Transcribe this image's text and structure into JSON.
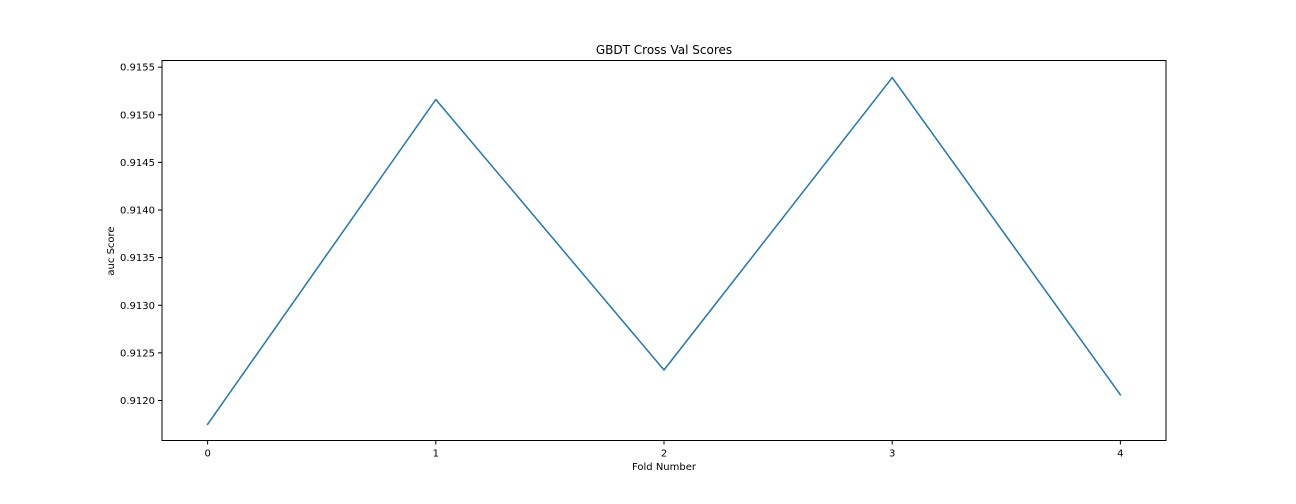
{
  "chart_data": {
    "type": "line",
    "title": "GBDT Cross Val Scores",
    "xlabel": "Fold Number",
    "ylabel": "auc Score",
    "x": [
      0,
      1,
      2,
      3,
      4
    ],
    "y": [
      0.91175,
      0.91516,
      0.91232,
      0.91539,
      0.91206
    ],
    "xlim": [
      -0.2,
      4.2
    ],
    "ylim": [
      0.91158,
      0.91557
    ],
    "xticks": [
      0,
      1,
      2,
      3,
      4
    ],
    "yticks": [
      "0.9120",
      "0.9125",
      "0.9130",
      "0.9135",
      "0.9140",
      "0.9145",
      "0.9150",
      "0.9155"
    ],
    "ytick_values": [
      0.912,
      0.9125,
      0.913,
      0.9135,
      0.914,
      0.9145,
      0.915,
      0.9155
    ],
    "grid": false,
    "line_color": "#1f77b4"
  }
}
